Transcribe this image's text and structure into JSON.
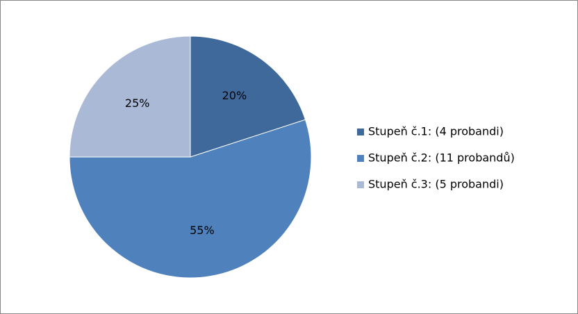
{
  "chart_data": {
    "type": "pie",
    "categories": [
      "Stupeň č.1: (4 probandi)",
      "Stupeň č.2: (11 probandů)",
      "Stupeň č.3: (5 probandi)"
    ],
    "values": [
      20,
      55,
      25
    ],
    "value_labels": [
      "20%",
      "55%",
      "25%"
    ],
    "colors": [
      "#3f689b",
      "#4f81bd",
      "#a9b9d6"
    ],
    "legend": "right"
  }
}
